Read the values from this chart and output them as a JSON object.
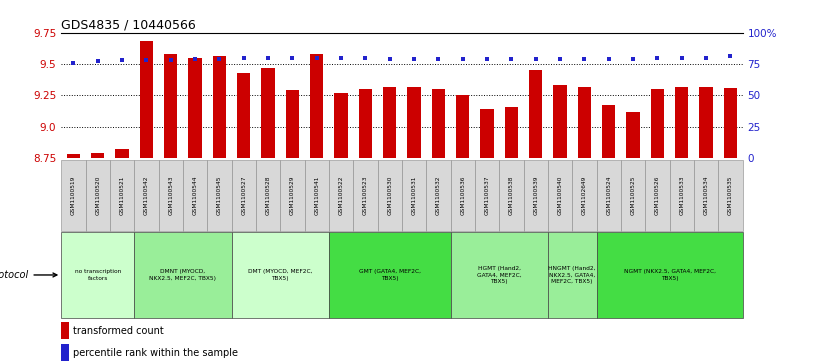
{
  "title": "GDS4835/ 10440566",
  "title_full": "GDS4835 / 10440566",
  "samples": [
    "GSM1100519",
    "GSM1100520",
    "GSM1100521",
    "GSM1100542",
    "GSM1100543",
    "GSM1100544",
    "GSM1100545",
    "GSM1100527",
    "GSM1100528",
    "GSM1100529",
    "GSM1100541",
    "GSM1100522",
    "GSM1100523",
    "GSM1100530",
    "GSM1100531",
    "GSM1100532",
    "GSM1100536",
    "GSM1100537",
    "GSM1100538",
    "GSM1100539",
    "GSM1100540",
    "GSM1102649",
    "GSM1100524",
    "GSM1100525",
    "GSM1100526",
    "GSM1100533",
    "GSM1100534",
    "GSM1100535"
  ],
  "bar_values": [
    8.78,
    8.79,
    8.82,
    9.68,
    9.58,
    9.55,
    9.56,
    9.43,
    9.47,
    9.29,
    9.58,
    9.27,
    9.3,
    9.32,
    9.32,
    9.3,
    9.25,
    9.14,
    9.16,
    9.45,
    9.33,
    9.32,
    9.17,
    9.12,
    9.3,
    9.32,
    9.32,
    9.31
  ],
  "percentile_values": [
    76,
    77,
    78,
    78,
    78,
    79,
    79,
    80,
    80,
    80,
    80,
    80,
    80,
    79,
    79,
    79,
    79,
    79,
    79,
    79,
    79,
    79,
    79,
    79,
    80,
    80,
    80,
    81
  ],
  "bar_color": "#cc0000",
  "dot_color": "#2222cc",
  "ymin": 8.75,
  "ymax": 9.75,
  "y2min": 0,
  "y2max": 100,
  "yticks": [
    8.75,
    9.0,
    9.25,
    9.5,
    9.75
  ],
  "y2ticks": [
    0,
    25,
    50,
    75,
    100
  ],
  "protocols": [
    {
      "label": "no transcription\nfactors",
      "start": 0,
      "end": 3,
      "color": "#ccffcc"
    },
    {
      "label": "DMNT (MYOCD,\nNKX2.5, MEF2C, TBX5)",
      "start": 3,
      "end": 7,
      "color": "#99ee99"
    },
    {
      "label": "DMT (MYOCD, MEF2C,\nTBX5)",
      "start": 7,
      "end": 11,
      "color": "#ccffcc"
    },
    {
      "label": "GMT (GATA4, MEF2C,\nTBX5)",
      "start": 11,
      "end": 16,
      "color": "#44dd44"
    },
    {
      "label": "HGMT (Hand2,\nGATA4, MEF2C,\nTBX5)",
      "start": 16,
      "end": 20,
      "color": "#99ee99"
    },
    {
      "label": "HNGMT (Hand2,\nNKX2.5, GATA4,\nMEF2C, TBX5)",
      "start": 20,
      "end": 22,
      "color": "#99ee99"
    },
    {
      "label": "NGMT (NKX2.5, GATA4, MEF2C,\nTBX5)",
      "start": 22,
      "end": 28,
      "color": "#44dd44"
    }
  ],
  "legend_red_label": "transformed count",
  "legend_blue_label": "percentile rank within the sample",
  "protocol_label": "protocol",
  "sample_box_color": "#d8d8d8",
  "bg_color": "#ffffff"
}
